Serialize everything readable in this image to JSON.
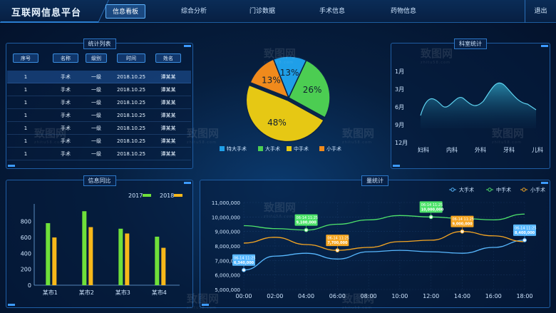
{
  "header": {
    "title": "互联网信息平台",
    "tabs": [
      {
        "label": "信息看板",
        "active": true
      },
      {
        "label": "综合分析",
        "active": false
      },
      {
        "label": "门诊数据",
        "active": false
      },
      {
        "label": "手术信息",
        "active": false
      },
      {
        "label": "药物信息",
        "active": false
      }
    ],
    "logout_label": "退出"
  },
  "stats_list": {
    "title": "统计列表",
    "columns": [
      "序号",
      "名称",
      "级别",
      "时间",
      "姓名"
    ],
    "rows": [
      [
        "1",
        "手术",
        "一级",
        "2018.10.25",
        "谭某某"
      ],
      [
        "1",
        "手术",
        "一级",
        "2018.10.25",
        "谭某某"
      ],
      [
        "1",
        "手术",
        "一级",
        "2018.10.25",
        "谭某某"
      ],
      [
        "1",
        "手术",
        "一级",
        "2018.10.25",
        "谭某某"
      ],
      [
        "1",
        "手术",
        "一级",
        "2018.10.25",
        "谭某某"
      ],
      [
        "1",
        "手术",
        "一级",
        "2018.10.25",
        "谭某某"
      ],
      [
        "1",
        "手术",
        "一级",
        "2018.10.25",
        "谭某某"
      ]
    ],
    "selected_row": 0
  },
  "watermark": {
    "text": "致图网",
    "sub": "zhitu58.com"
  },
  "colors": {
    "accent": "#3d9bff",
    "green": "#4ccd52",
    "blue": "#1f9fe8",
    "yellow": "#e6c814",
    "orange": "#f08a1c",
    "bar2017": "#6fe03a",
    "bar2018": "#f7b81a"
  },
  "department_stats": {
    "title": "科室统计",
    "y_labels": [
      "1月",
      "3月",
      "6月",
      "9月",
      "12月"
    ],
    "x_labels": [
      "妇科",
      "内科",
      "外科",
      "牙科",
      "儿科"
    ]
  },
  "info_compare": {
    "title": "信息同比"
  },
  "volume_stats": {
    "title": "量统计"
  },
  "chart_data": [
    {
      "type": "pie",
      "labels": [
        "特大手术",
        "大手术",
        "中手术",
        "小手术"
      ],
      "values": [
        13,
        26,
        48,
        13
      ],
      "value_labels": [
        "13%",
        "26%",
        "48%",
        "13%"
      ],
      "colors": [
        "#1f9fe8",
        "#4ccd52",
        "#e6c814",
        "#f08a1c"
      ],
      "legend_placement": "bottom"
    },
    {
      "type": "bar",
      "categories": [
        "某市1",
        "某市2",
        "某市3",
        "某市4"
      ],
      "series": [
        {
          "name": "2017",
          "values": [
            780,
            930,
            710,
            610
          ]
        },
        {
          "name": "2018",
          "values": [
            600,
            730,
            650,
            470
          ]
        }
      ],
      "y_ticks": [
        0,
        200,
        400,
        600,
        800
      ],
      "ylim": [
        0,
        950
      ],
      "legend_placement": "top-right"
    },
    {
      "type": "line",
      "x": [
        "00:00",
        "02:00",
        "04:00",
        "06:00",
        "08:00",
        "10:00",
        "12:00",
        "14:00",
        "16:00",
        "18:00"
      ],
      "y_ticks": [
        "5,000,000",
        "6,000,000",
        "7,000,000",
        "8,000,000",
        "9,000,000",
        "10,000,000",
        "11,000,000"
      ],
      "ylim": [
        5000000,
        11000000
      ],
      "series": [
        {
          "name": "大手术",
          "color": "#58b8ff",
          "values": [
            6340000,
            7300000,
            7500000,
            7100000,
            7600000,
            7700000,
            7600000,
            7500000,
            7900000,
            8400000
          ]
        },
        {
          "name": "中手术",
          "color": "#4ee36b",
          "values": [
            9400000,
            9200000,
            9100000,
            9500000,
            9800000,
            10100000,
            10000000,
            9900000,
            9800000,
            10200000
          ]
        },
        {
          "name": "小手术",
          "color": "#f5a623",
          "values": [
            8200000,
            8600000,
            8100000,
            7700000,
            7900000,
            8300000,
            8400000,
            9000000,
            8700000,
            8300000
          ]
        }
      ],
      "callouts": [
        {
          "series": 0,
          "index": 0,
          "date": "06-14 11:25",
          "value": "6,340,000"
        },
        {
          "series": 1,
          "index": 2,
          "date": "06-14 11:25",
          "value": "9,100,000"
        },
        {
          "series": 2,
          "index": 3,
          "date": "06-14 11:25",
          "value": "7,700,000"
        },
        {
          "series": 1,
          "index": 6,
          "date": "06-14 11:25",
          "value": "10,000,000"
        },
        {
          "series": 2,
          "index": 7,
          "date": "06-14 11:25",
          "value": "9,000,000"
        },
        {
          "series": 0,
          "index": 9,
          "date": "06-14 11:25",
          "value": "8,400,000"
        }
      ],
      "legend_placement": "top-right"
    },
    {
      "type": "area",
      "x": [
        "妇科",
        "内科",
        "外科",
        "牙科",
        "儿科"
      ],
      "y_categories": [
        "1月",
        "3月",
        "6月",
        "9月",
        "12月"
      ],
      "values": [
        6,
        4.8,
        5.5,
        4.4,
        5.3
      ],
      "note": "wave shape approximate"
    }
  ]
}
